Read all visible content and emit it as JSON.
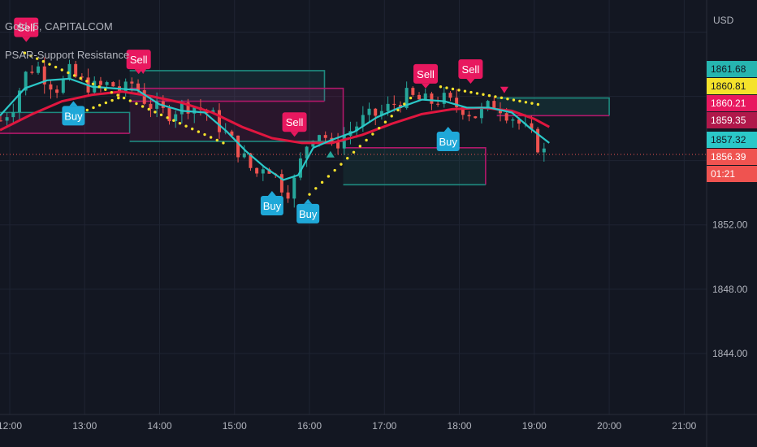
{
  "header": {
    "symbol": "Gold, 5, CAPITALCOM",
    "indicator": "PSAR-Support Resistance",
    "currency": "USD"
  },
  "colors": {
    "bg": "#131722",
    "grid": "#1f2433",
    "up": "#26a69a",
    "down": "#ef5350",
    "ema_fast": "#2bc8c8",
    "ema_slow": "#e0163f",
    "psar": "#f5e22b",
    "teal_zone": "#1e8a7f",
    "magenta_zone": "#b0186a",
    "buy": "#1fa8d8",
    "sell": "#e8185f"
  },
  "price_tags": [
    {
      "text": "1861.68",
      "value": 1861.68,
      "bg": "#26b5b0",
      "fg": "#131722"
    },
    {
      "text": "1860.81",
      "value": 1860.81,
      "bg": "#f5e22b",
      "fg": "#131722"
    },
    {
      "text": "1860.21",
      "value": 1860.21,
      "bg": "#e8185f",
      "fg": "#ffffff"
    },
    {
      "text": "1859.35",
      "value": 1859.35,
      "bg": "#b0184a",
      "fg": "#ffffff"
    },
    {
      "text": "1857.32",
      "value": 1857.32,
      "bg": "#2bc8c8",
      "fg": "#131722"
    },
    {
      "text": "1856.39",
      "value": 1856.39,
      "bg": "#ef5350",
      "fg": "#ffffff"
    },
    {
      "text": "01:21",
      "value": 1855.8,
      "bg": "#ef5350",
      "fg": "#ffffff"
    }
  ],
  "chart_data": {
    "type": "candlestick",
    "y_ticks": [
      {
        "label": "1852.00",
        "value": 1852
      },
      {
        "label": "1848.00",
        "value": 1848
      },
      {
        "label": "1844.00",
        "value": 1844
      }
    ],
    "x_ticks": [
      {
        "label": "12:00",
        "t": 12.0
      },
      {
        "label": "13:00",
        "t": 13.0
      },
      {
        "label": "14:00",
        "t": 14.0
      },
      {
        "label": "15:00",
        "t": 15.0
      },
      {
        "label": "16:00",
        "t": 16.0
      },
      {
        "label": "17:00",
        "t": 17.0
      },
      {
        "label": "18:00",
        "t": 18.0
      },
      {
        "label": "19:00",
        "t": 19.0
      },
      {
        "label": "20:00",
        "t": 20.0
      },
      {
        "label": "21:00",
        "t": 21.0
      }
    ],
    "x_range": [
      11.87,
      21.3
    ],
    "y_range": [
      1840.2,
      1866.0
    ],
    "last_price": 1856.39,
    "price_path": [
      [
        11.88,
        1858.5
      ],
      [
        12.05,
        1859.5
      ],
      [
        12.2,
        1861.3
      ],
      [
        12.35,
        1862.0
      ],
      [
        12.5,
        1861.0
      ],
      [
        12.65,
        1860.5
      ],
      [
        12.8,
        1861.5
      ],
      [
        12.95,
        1860.9
      ],
      [
        13.15,
        1860.5
      ],
      [
        13.35,
        1860.8
      ],
      [
        13.5,
        1860.2
      ],
      [
        13.65,
        1860.9
      ],
      [
        13.8,
        1859.8
      ],
      [
        13.95,
        1859.2
      ],
      [
        14.1,
        1858.9
      ],
      [
        14.25,
        1859.3
      ],
      [
        14.4,
        1859.5
      ],
      [
        14.55,
        1859.2
      ],
      [
        14.7,
        1858.8
      ],
      [
        14.85,
        1857.8
      ],
      [
        15.0,
        1857.0
      ],
      [
        15.1,
        1856.3
      ],
      [
        15.2,
        1855.6
      ],
      [
        15.3,
        1855.2
      ],
      [
        15.4,
        1855.9
      ],
      [
        15.5,
        1855.4
      ],
      [
        15.6,
        1854.6
      ],
      [
        15.7,
        1854.1
      ],
      [
        15.8,
        1854.7
      ],
      [
        15.9,
        1856.2
      ],
      [
        16.0,
        1857.5
      ],
      [
        16.1,
        1857.9
      ],
      [
        16.2,
        1857.6
      ],
      [
        16.3,
        1856.7
      ],
      [
        16.4,
        1857.3
      ],
      [
        16.55,
        1857.9
      ],
      [
        16.7,
        1858.5
      ],
      [
        16.85,
        1858.8
      ],
      [
        17.0,
        1859.1
      ],
      [
        17.15,
        1859.6
      ],
      [
        17.3,
        1860.0
      ],
      [
        17.45,
        1859.8
      ],
      [
        17.6,
        1859.6
      ],
      [
        17.75,
        1859.9
      ],
      [
        17.9,
        1859.5
      ],
      [
        18.05,
        1859.3
      ],
      [
        18.2,
        1858.8
      ],
      [
        18.35,
        1859.2
      ],
      [
        18.5,
        1859.6
      ],
      [
        18.6,
        1859.1
      ],
      [
        18.7,
        1858.8
      ],
      [
        18.8,
        1858.3
      ],
      [
        18.9,
        1857.8
      ],
      [
        19.0,
        1857.3
      ],
      [
        19.1,
        1856.6
      ],
      [
        19.17,
        1856.39
      ]
    ],
    "ema_fast": [
      [
        11.87,
        1858.8
      ],
      [
        12.2,
        1860.5
      ],
      [
        12.5,
        1861.0
      ],
      [
        12.8,
        1861.1
      ],
      [
        13.1,
        1860.6
      ],
      [
        13.4,
        1860.5
      ],
      [
        13.7,
        1860.4
      ],
      [
        14.0,
        1859.5
      ],
      [
        14.3,
        1859.1
      ],
      [
        14.6,
        1859.0
      ],
      [
        14.9,
        1857.8
      ],
      [
        15.15,
        1856.6
      ],
      [
        15.4,
        1855.6
      ],
      [
        15.65,
        1854.8
      ],
      [
        15.85,
        1855.1
      ],
      [
        16.05,
        1856.8
      ],
      [
        16.3,
        1857.3
      ],
      [
        16.6,
        1857.8
      ],
      [
        16.9,
        1858.7
      ],
      [
        17.2,
        1859.3
      ],
      [
        17.5,
        1859.8
      ],
      [
        17.8,
        1859.7
      ],
      [
        18.1,
        1859.3
      ],
      [
        18.4,
        1859.3
      ],
      [
        18.7,
        1859.0
      ],
      [
        18.95,
        1858.0
      ],
      [
        19.2,
        1857.1
      ]
    ],
    "ema_slow": [
      [
        11.87,
        1857.9
      ],
      [
        12.3,
        1858.9
      ],
      [
        12.7,
        1859.7
      ],
      [
        13.1,
        1860.1
      ],
      [
        13.5,
        1860.3
      ],
      [
        13.9,
        1860.0
      ],
      [
        14.3,
        1859.6
      ],
      [
        14.7,
        1859.0
      ],
      [
        15.1,
        1858.1
      ],
      [
        15.5,
        1857.4
      ],
      [
        15.9,
        1857.1
      ],
      [
        16.3,
        1857.1
      ],
      [
        16.7,
        1857.6
      ],
      [
        17.1,
        1858.3
      ],
      [
        17.5,
        1858.9
      ],
      [
        17.9,
        1859.2
      ],
      [
        18.3,
        1859.3
      ],
      [
        18.7,
        1859.1
      ],
      [
        19.0,
        1858.6
      ],
      [
        19.2,
        1858.1
      ]
    ],
    "psar_segments": [
      {
        "from": [
          12.2,
          1862.7
        ],
        "to": [
          14.85,
          1857.1
        ]
      },
      {
        "from": [
          12.95,
          1859.0
        ],
        "to": [
          13.45,
          1859.9
        ]
      },
      {
        "from": [
          16.0,
          1853.9
        ],
        "to": [
          17.35,
          1859.9
        ]
      },
      {
        "from": [
          17.75,
          1860.6
        ],
        "to": [
          19.05,
          1859.5
        ]
      }
    ],
    "zones": [
      {
        "t0": 11.87,
        "t1": 13.6,
        "top": 1859.0,
        "bottom": 1857.7,
        "edge": "#1e8a7f",
        "fill": "rgba(176,24,106,0.14)"
      },
      {
        "t0": 13.6,
        "t1": 16.2,
        "top": 1861.6,
        "bottom": 1859.7,
        "edge": "#1e8a7f",
        "fill": "rgba(30,138,127,0.14)"
      },
      {
        "t0": 13.6,
        "t1": 16.45,
        "top": 1860.5,
        "bottom": 1857.2,
        "edge": "#b0186a",
        "fill": "rgba(176,24,106,0.14)"
      },
      {
        "t0": 16.45,
        "t1": 18.35,
        "top": 1856.8,
        "bottom": 1854.5,
        "edge": "#b0186a",
        "fill": "rgba(30,138,127,0.12)"
      },
      {
        "t0": 18.5,
        "t1": 20.0,
        "top": 1859.9,
        "bottom": 1858.8,
        "edge": "#1e8a7f",
        "fill": "rgba(30,138,127,0.16)"
      }
    ],
    "signals": [
      {
        "type": "sell",
        "label": "Sell",
        "t": 12.22,
        "price": 1864.3
      },
      {
        "type": "sell",
        "label": "Sell",
        "t": 13.72,
        "price": 1862.3
      },
      {
        "type": "buy",
        "label": "Buy",
        "t": 12.85,
        "price": 1858.8
      },
      {
        "type": "sell",
        "label": "Sell",
        "t": 15.8,
        "price": 1858.4
      },
      {
        "type": "buy",
        "label": "Buy",
        "t": 15.5,
        "price": 1853.2
      },
      {
        "type": "buy",
        "label": "Buy",
        "t": 15.98,
        "price": 1852.7
      },
      {
        "type": "sell",
        "label": "Sell",
        "t": 17.55,
        "price": 1861.4
      },
      {
        "type": "sell",
        "label": "Sell",
        "t": 18.15,
        "price": 1861.7
      },
      {
        "type": "buy",
        "label": "Buy",
        "t": 17.85,
        "price": 1857.2
      }
    ],
    "triangles": [
      {
        "dir": "down",
        "t": 13.78,
        "price": 1861.6
      },
      {
        "dir": "up",
        "t": 16.28,
        "price": 1856.4
      },
      {
        "dir": "down",
        "t": 18.6,
        "price": 1860.4
      }
    ]
  }
}
